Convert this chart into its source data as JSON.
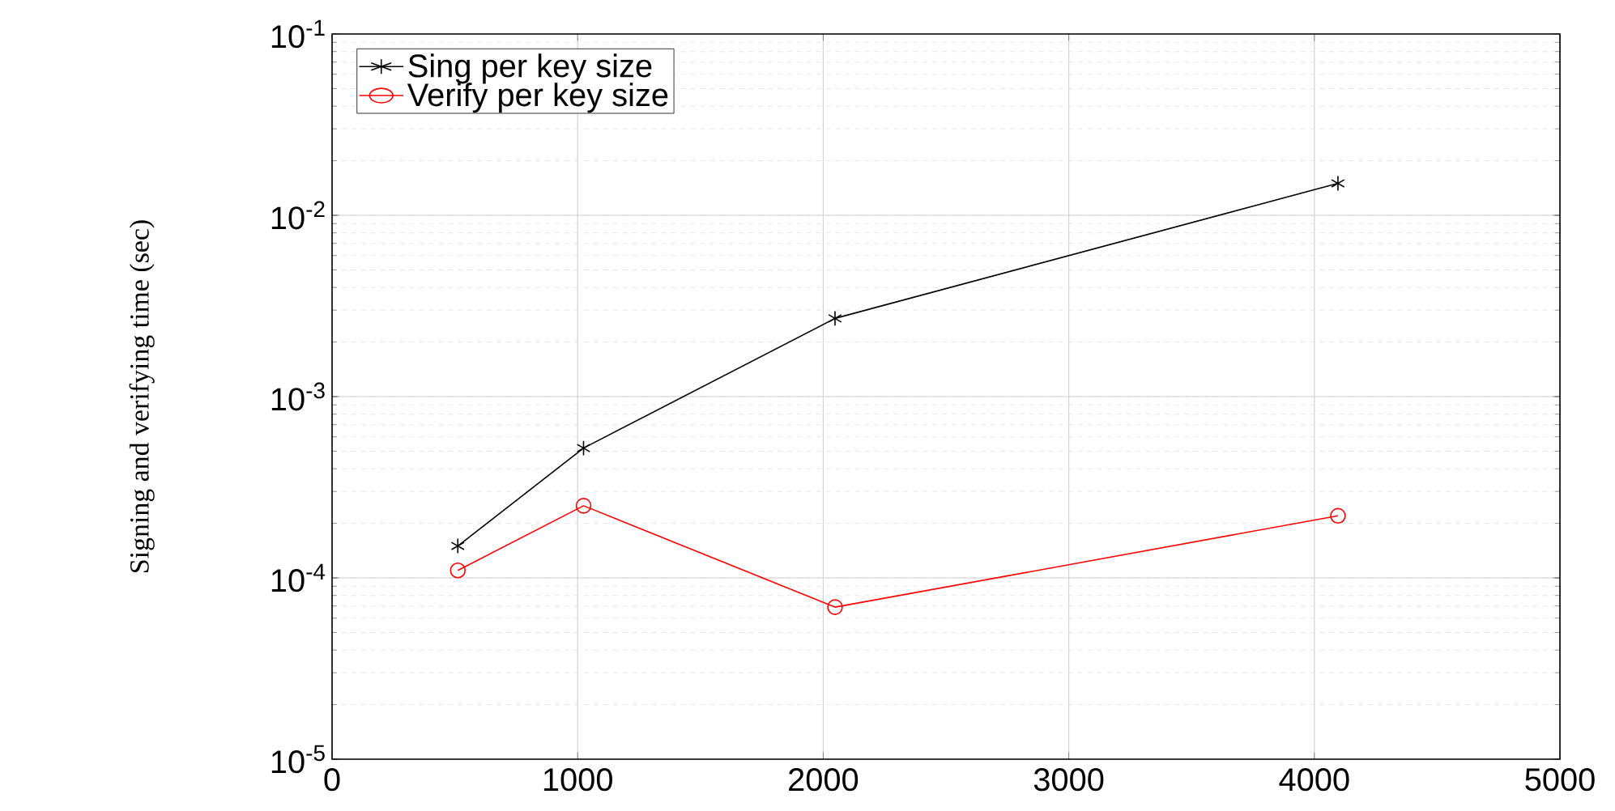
{
  "chart_data": {
    "type": "line",
    "ylabel": "Signing and verifying time (sec)",
    "x": [
      512,
      1024,
      2048,
      4096
    ],
    "series": [
      {
        "name": "Sing per key size",
        "color": "#000000",
        "marker": "cross",
        "values": [
          0.00015,
          0.00052,
          0.0027,
          0.015
        ]
      },
      {
        "name": "Verify per key size",
        "color": "#ff0000",
        "marker": "circle",
        "values": [
          0.00011,
          0.00025,
          6.9e-05,
          0.00022
        ]
      }
    ],
    "log": "y",
    "xlim": [
      0,
      5000
    ],
    "xticks": [
      0,
      1000,
      2000,
      3000,
      4000,
      5000
    ],
    "ylim": [
      1e-05,
      0.1
    ],
    "yticks": [
      {
        "value": 1e-05,
        "label": "10$^{-5}$"
      },
      {
        "value": 0.0001,
        "label": "10$^{-4}$"
      },
      {
        "value": 0.001,
        "label": "10$^{-3}$"
      },
      {
        "value": 0.01,
        "label": "10$^{-2}$"
      },
      {
        "value": 0.1,
        "label": "10$^{-1}$"
      }
    ],
    "grid": true,
    "legend": "top left",
    "line_style": "solid"
  }
}
